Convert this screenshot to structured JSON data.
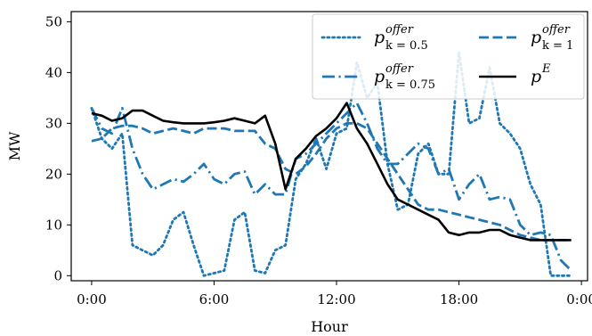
{
  "chart_data": {
    "type": "line",
    "xlabel": "Hour",
    "ylabel": "MW",
    "xlim": [
      -1,
      24.3
    ],
    "ylim": [
      -1,
      52
    ],
    "x_ticks": [
      0,
      6,
      12,
      18,
      24
    ],
    "x_tick_labels": [
      "0:00",
      "6:00",
      "12:00",
      "18:00",
      "0:00"
    ],
    "y_ticks": [
      0,
      10,
      20,
      30,
      40,
      50
    ],
    "y_tick_labels": [
      "0",
      "10",
      "20",
      "30",
      "40",
      "50"
    ],
    "legend_position": "top-right",
    "grid": false,
    "series": [
      {
        "name": "p_{k=0.5}^{offer}",
        "legend": {
          "base": "p",
          "sup": "offer",
          "sub": "k = 0.5"
        },
        "style": "dotted",
        "color": "#1f77b4",
        "x": [
          0,
          0.5,
          1,
          1.5,
          2,
          2.5,
          3,
          3.5,
          4,
          4.5,
          5,
          5.5,
          6,
          6.5,
          7,
          7.5,
          8,
          8.5,
          9,
          9.5,
          10,
          10.5,
          11,
          11.5,
          12,
          12.5,
          13,
          13.5,
          14,
          14.5,
          15,
          15.5,
          16,
          16.5,
          17,
          17.5,
          18,
          18.5,
          19,
          19.5,
          20,
          20.5,
          21,
          21.5,
          22,
          22.5,
          23,
          23.5
        ],
        "y": [
          33,
          27,
          25,
          28,
          6,
          5,
          4,
          6,
          11,
          12.5,
          6,
          0,
          0.5,
          1,
          11,
          12.5,
          1,
          0.5,
          5,
          6,
          19,
          22,
          27,
          21,
          28,
          29,
          42,
          35,
          38,
          22,
          13,
          14,
          24,
          26,
          20,
          20,
          44,
          30,
          31,
          41,
          30,
          28,
          25,
          18,
          14,
          0,
          0,
          0
        ]
      },
      {
        "name": "p_{k=0.75}^{offer}",
        "legend": {
          "base": "p",
          "sup": "offer",
          "sub": "k = 0.75"
        },
        "style": "dashdot",
        "color": "#1f77b4",
        "x": [
          0,
          0.5,
          1,
          1.5,
          2,
          2.5,
          3,
          3.5,
          4,
          4.5,
          5,
          5.5,
          6,
          6.5,
          7,
          7.5,
          8,
          8.5,
          9,
          9.5,
          10,
          10.5,
          11,
          11.5,
          12,
          12.5,
          13,
          13.5,
          14,
          14.5,
          15,
          15.5,
          16,
          16.5,
          17,
          17.5,
          18,
          18.5,
          19,
          19.5,
          20,
          20.5,
          21,
          21.5,
          22,
          22.5,
          23,
          23.5
        ],
        "y": [
          33,
          29,
          28,
          33,
          25,
          20,
          17,
          18,
          19,
          18.5,
          20,
          22,
          19,
          18,
          20,
          20.5,
          16,
          18,
          16,
          16,
          23,
          24,
          26,
          28,
          30,
          32,
          34,
          30,
          25,
          22,
          22,
          24,
          26,
          25,
          20,
          21,
          15,
          18,
          20,
          15,
          15.5,
          15,
          10,
          8,
          8.5,
          8,
          3,
          1
        ]
      },
      {
        "name": "p_{k=1}^{offer}",
        "legend": {
          "base": "p",
          "sup": "offer",
          "sub": "k = 1"
        },
        "style": "dashed",
        "color": "#1f77b4",
        "x": [
          0,
          0.5,
          1,
          1.5,
          2,
          2.5,
          3,
          3.5,
          4,
          4.5,
          5,
          5.5,
          6,
          6.5,
          7,
          7.5,
          8,
          8.5,
          9,
          9.5,
          10,
          10.5,
          11,
          11.5,
          12,
          12.5,
          13,
          13.5,
          14,
          14.5,
          15,
          15.5,
          16,
          16.5,
          17,
          17.5,
          18,
          18.5,
          19,
          19.5,
          20,
          20.5,
          21,
          21.5,
          22,
          22.5,
          23,
          23.5
        ],
        "y": [
          26.5,
          27,
          29,
          29.5,
          29.5,
          29,
          28,
          28.5,
          29,
          28.5,
          28,
          29,
          29,
          29,
          28.5,
          28.5,
          28.5,
          26,
          25,
          21,
          20,
          21.5,
          24,
          27,
          29,
          30,
          30,
          29,
          26,
          23,
          20,
          17,
          14,
          13,
          13,
          12.5,
          12,
          11.5,
          11,
          10.5,
          10,
          9,
          8,
          7.5,
          7,
          7,
          7,
          7
        ]
      },
      {
        "name": "p^E",
        "legend": {
          "base": "p",
          "sup": "E",
          "sub": ""
        },
        "style": "solid",
        "color": "#000000",
        "x": [
          0,
          0.5,
          1,
          1.5,
          2,
          2.5,
          3,
          3.5,
          4,
          4.5,
          5,
          5.5,
          6,
          6.5,
          7,
          7.5,
          8,
          8.5,
          9,
          9.5,
          10,
          10.5,
          11,
          11.5,
          12,
          12.5,
          13,
          13.5,
          14,
          14.5,
          15,
          15.5,
          16,
          16.5,
          17,
          17.5,
          18,
          18.5,
          19,
          19.5,
          20,
          20.5,
          21,
          21.5,
          22,
          22.5,
          23,
          23.5
        ],
        "y": [
          32,
          31.5,
          30.5,
          31,
          32.5,
          32.5,
          31.5,
          30.5,
          30.2,
          30,
          30,
          30,
          30.2,
          30.5,
          31,
          30.5,
          30,
          31.5,
          26,
          17,
          23,
          25,
          27.5,
          29,
          31,
          34,
          29,
          26,
          22,
          18,
          15,
          14,
          13,
          12,
          11,
          8.5,
          8,
          8.5,
          8.5,
          9,
          9,
          8,
          7.5,
          7,
          7,
          7,
          7,
          7
        ]
      }
    ]
  }
}
